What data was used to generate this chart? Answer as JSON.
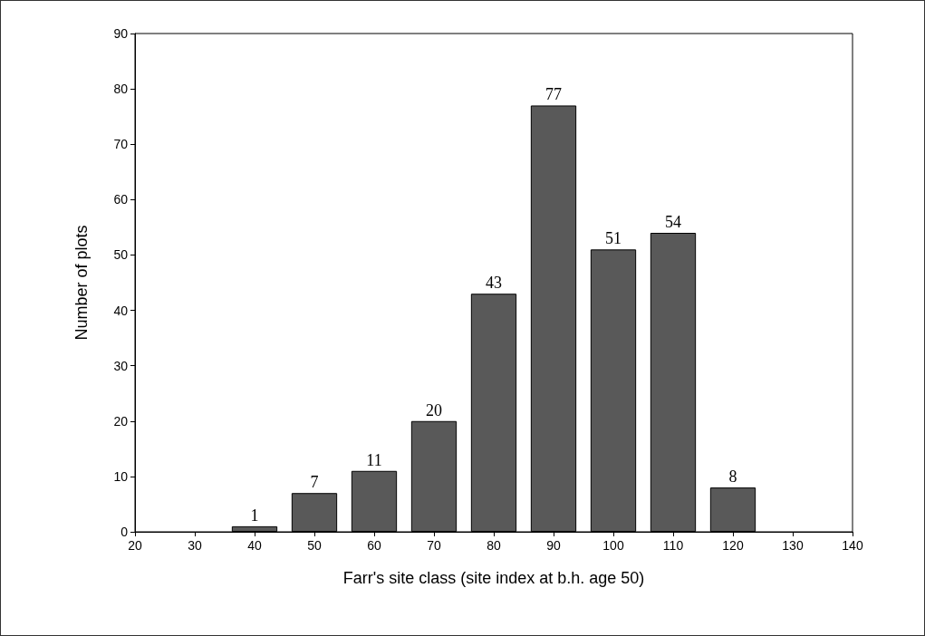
{
  "chart_data": {
    "type": "bar",
    "xlabel": "Farr's site class (site index at b.h. age 50)",
    "ylabel": "Number of plots",
    "x": [
      40,
      50,
      60,
      70,
      80,
      90,
      100,
      110,
      120
    ],
    "values": [
      1,
      7,
      11,
      20,
      43,
      77,
      51,
      54,
      8
    ],
    "color": "#595959",
    "xlim": [
      20,
      140
    ],
    "xticks": [
      20,
      30,
      40,
      50,
      60,
      70,
      80,
      90,
      100,
      110,
      120,
      130,
      140
    ],
    "ylim": [
      0,
      90
    ],
    "yticks": [
      0,
      10,
      20,
      30,
      40,
      50,
      60,
      70,
      80,
      90
    ],
    "data_labels": true,
    "grid": false
  }
}
